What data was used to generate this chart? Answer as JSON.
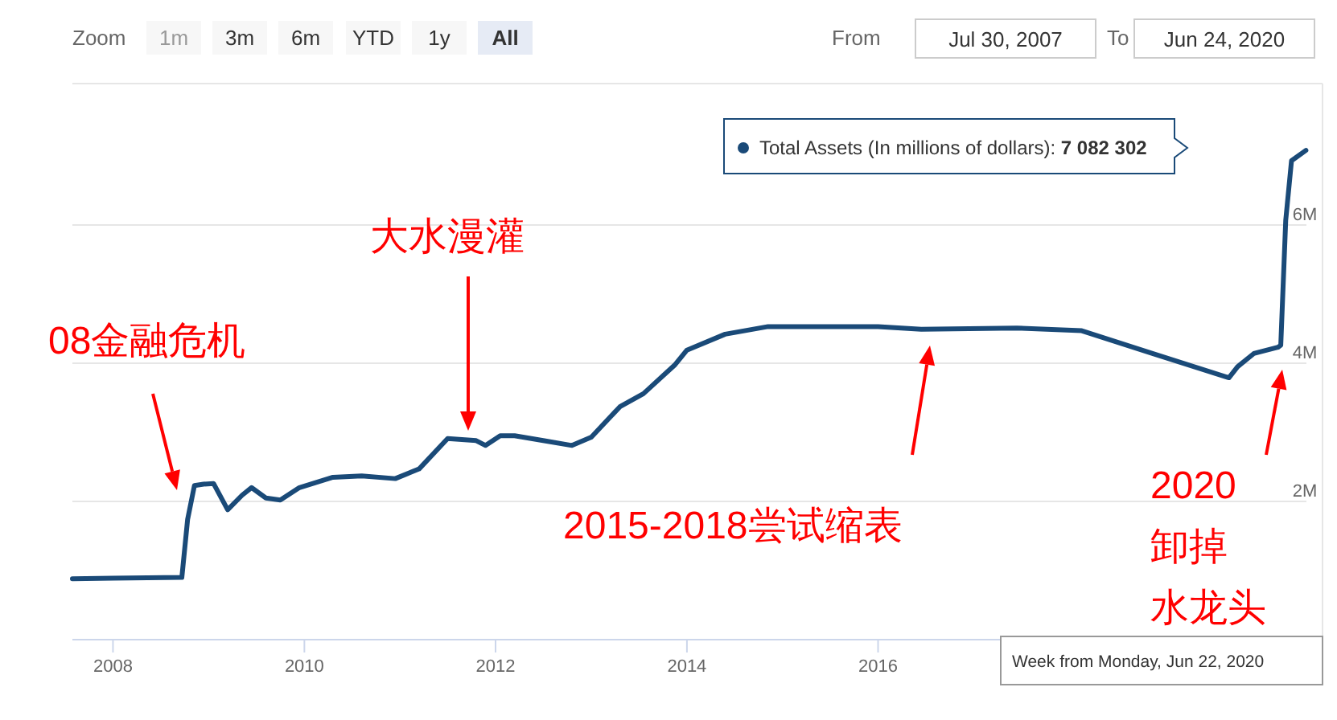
{
  "chart_data": {
    "type": "line",
    "x": [
      "2007-07-30",
      "2008-01-01",
      "2008-09-20",
      "2008-10-12",
      "2008-11-07",
      "2008-12-12",
      "2009-01-19",
      "2009-03-14",
      "2009-05-08",
      "2009-06-13",
      "2009-08-07",
      "2009-10-01",
      "2009-12-13",
      "2010-04-20",
      "2010-08-08",
      "2010-12-14",
      "2011-03-15",
      "2011-07-02",
      "2011-10-19",
      "2011-11-24",
      "2012-01-19",
      "2012-03-14",
      "2012-07-01",
      "2012-10-19",
      "2013-01-01",
      "2013-04-20",
      "2013-07-19",
      "2013-11-17",
      "2014-01-01",
      "2014-05-27",
      "2014-11-07",
      "2015-01-19",
      "2016-01-01",
      "2016-06-14",
      "2017-06-14",
      "2018-02-17",
      "2018-11-14",
      "2019-09-02",
      "2019-10-05",
      "2019-12-06",
      "2020-03-07",
      "2020-03-18",
      "2020-04-06",
      "2020-04-28",
      "2020-06-22"
    ],
    "series": [
      {
        "color": "#1a4a78",
        "values": [
          0.88,
          0.89,
          0.9,
          1.74,
          2.23,
          2.25,
          2.26,
          1.88,
          2.09,
          2.2,
          2.05,
          2.02,
          2.2,
          2.35,
          2.37,
          2.33,
          2.47,
          2.91,
          2.88,
          2.81,
          2.95,
          2.95,
          2.88,
          2.81,
          2.93,
          3.37,
          3.56,
          3.98,
          4.19,
          4.42,
          4.53,
          4.53,
          4.53,
          4.49,
          4.51,
          4.47,
          4.14,
          3.79,
          3.95,
          4.14,
          4.23,
          4.26,
          6.07,
          6.93,
          7.08
        ]
      }
    ],
    "xlim": [
      "2007-07-30",
      "2020-06-24"
    ],
    "xticks": [
      {
        "value": "2008-01-01",
        "label": "2008"
      },
      {
        "value": "2010-01-01",
        "label": "2010"
      },
      {
        "value": "2012-01-01",
        "label": "2012"
      },
      {
        "value": "2014-01-01",
        "label": "2014"
      },
      {
        "value": "2016-01-01",
        "label": "2016"
      },
      {
        "value": "2018-01-01",
        "label": null
      },
      {
        "value": "2020-01-01",
        "label": null
      }
    ],
    "ylim": [
      0,
      8
    ],
    "yticks": [
      {
        "value": 0,
        "label": null
      },
      {
        "value": 2,
        "label": "2M"
      },
      {
        "value": 4,
        "label": "4M"
      },
      {
        "value": 6,
        "label": "6M"
      }
    ],
    "grid": "y",
    "marker": "none",
    "line_style": "solid",
    "annotations": [
      "Zoom",
      "1m",
      "3m",
      "6m",
      "YTD",
      "1y",
      "All",
      "From",
      "Jul 30, 2007",
      "To",
      "Jun 24, 2020",
      "Total Assets (In millions of dollars): 7 082 302",
      "Week from Monday, Jun 22, 2020",
      "08金融危机",
      "大水漫灌",
      "2015-2018尝试缩表",
      "2020",
      "卸掉",
      "水龙头"
    ]
  }
}
